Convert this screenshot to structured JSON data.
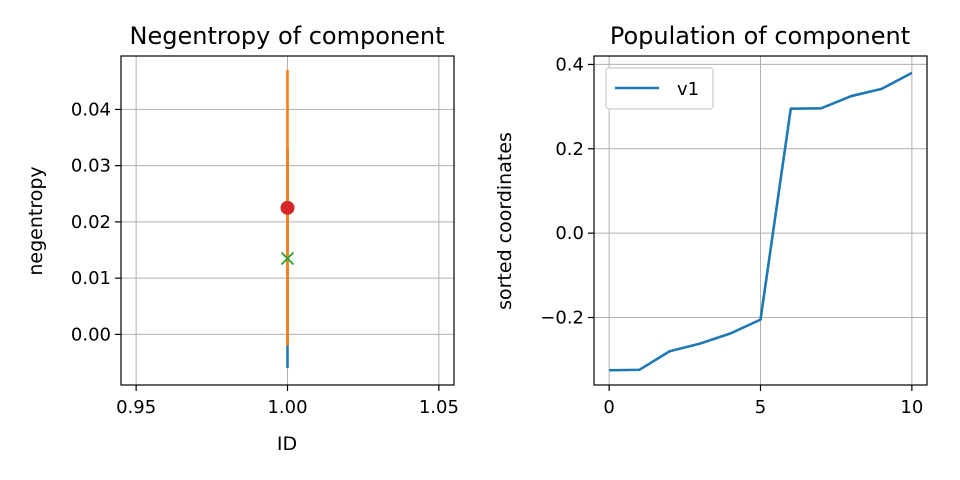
{
  "chart_data": [
    {
      "type": "scatter",
      "title": "Negentropy of component",
      "xlabel": "ID",
      "ylabel": "negentropy",
      "xlim": [
        0.945,
        1.055
      ],
      "ylim": [
        -0.009,
        0.0495
      ],
      "xticks": [
        0.95,
        1.0,
        1.05
      ],
      "xtick_labels": [
        "0.95",
        "1.00",
        "1.05"
      ],
      "yticks": [
        0.0,
        0.01,
        0.02,
        0.03,
        0.04
      ],
      "ytick_labels": [
        "0.00",
        "0.01",
        "0.02",
        "0.03",
        "0.04"
      ],
      "grid": true,
      "range_segments": [
        {
          "x": 1.0,
          "y_low": -0.006,
          "y_high": 0.033,
          "color": "#1f77b4"
        },
        {
          "x": 1.0,
          "y_low": -0.002,
          "y_high": 0.047,
          "color": "#ff7f0e"
        }
      ],
      "points": [
        {
          "x": 1.0,
          "y": 0.0225,
          "marker": "circle",
          "color": "#d62728"
        },
        {
          "x": 1.0,
          "y": 0.0135,
          "marker": "x",
          "color": "#2ca02c"
        }
      ]
    },
    {
      "type": "line",
      "title": "Population of component",
      "xlabel": "",
      "ylabel": "sorted coordinates",
      "xlim": [
        -0.5,
        10.5
      ],
      "ylim": [
        -0.36,
        0.42
      ],
      "xticks": [
        0,
        5,
        10
      ],
      "xtick_labels": [
        "0",
        "5",
        "10"
      ],
      "yticks": [
        -0.2,
        0.0,
        0.2,
        0.4
      ],
      "ytick_labels": [
        "−0.2",
        "0.0",
        "0.2",
        "0.4"
      ],
      "grid": true,
      "legend": "upper-left",
      "x": [
        0,
        1,
        2,
        3,
        4,
        5,
        6,
        7,
        8,
        9,
        10
      ],
      "series": [
        {
          "name": "v1",
          "color": "#1f77b4",
          "values": [
            -0.325,
            -0.324,
            -0.28,
            -0.262,
            -0.238,
            -0.205,
            0.295,
            0.296,
            0.325,
            0.342,
            0.38
          ]
        }
      ]
    }
  ]
}
